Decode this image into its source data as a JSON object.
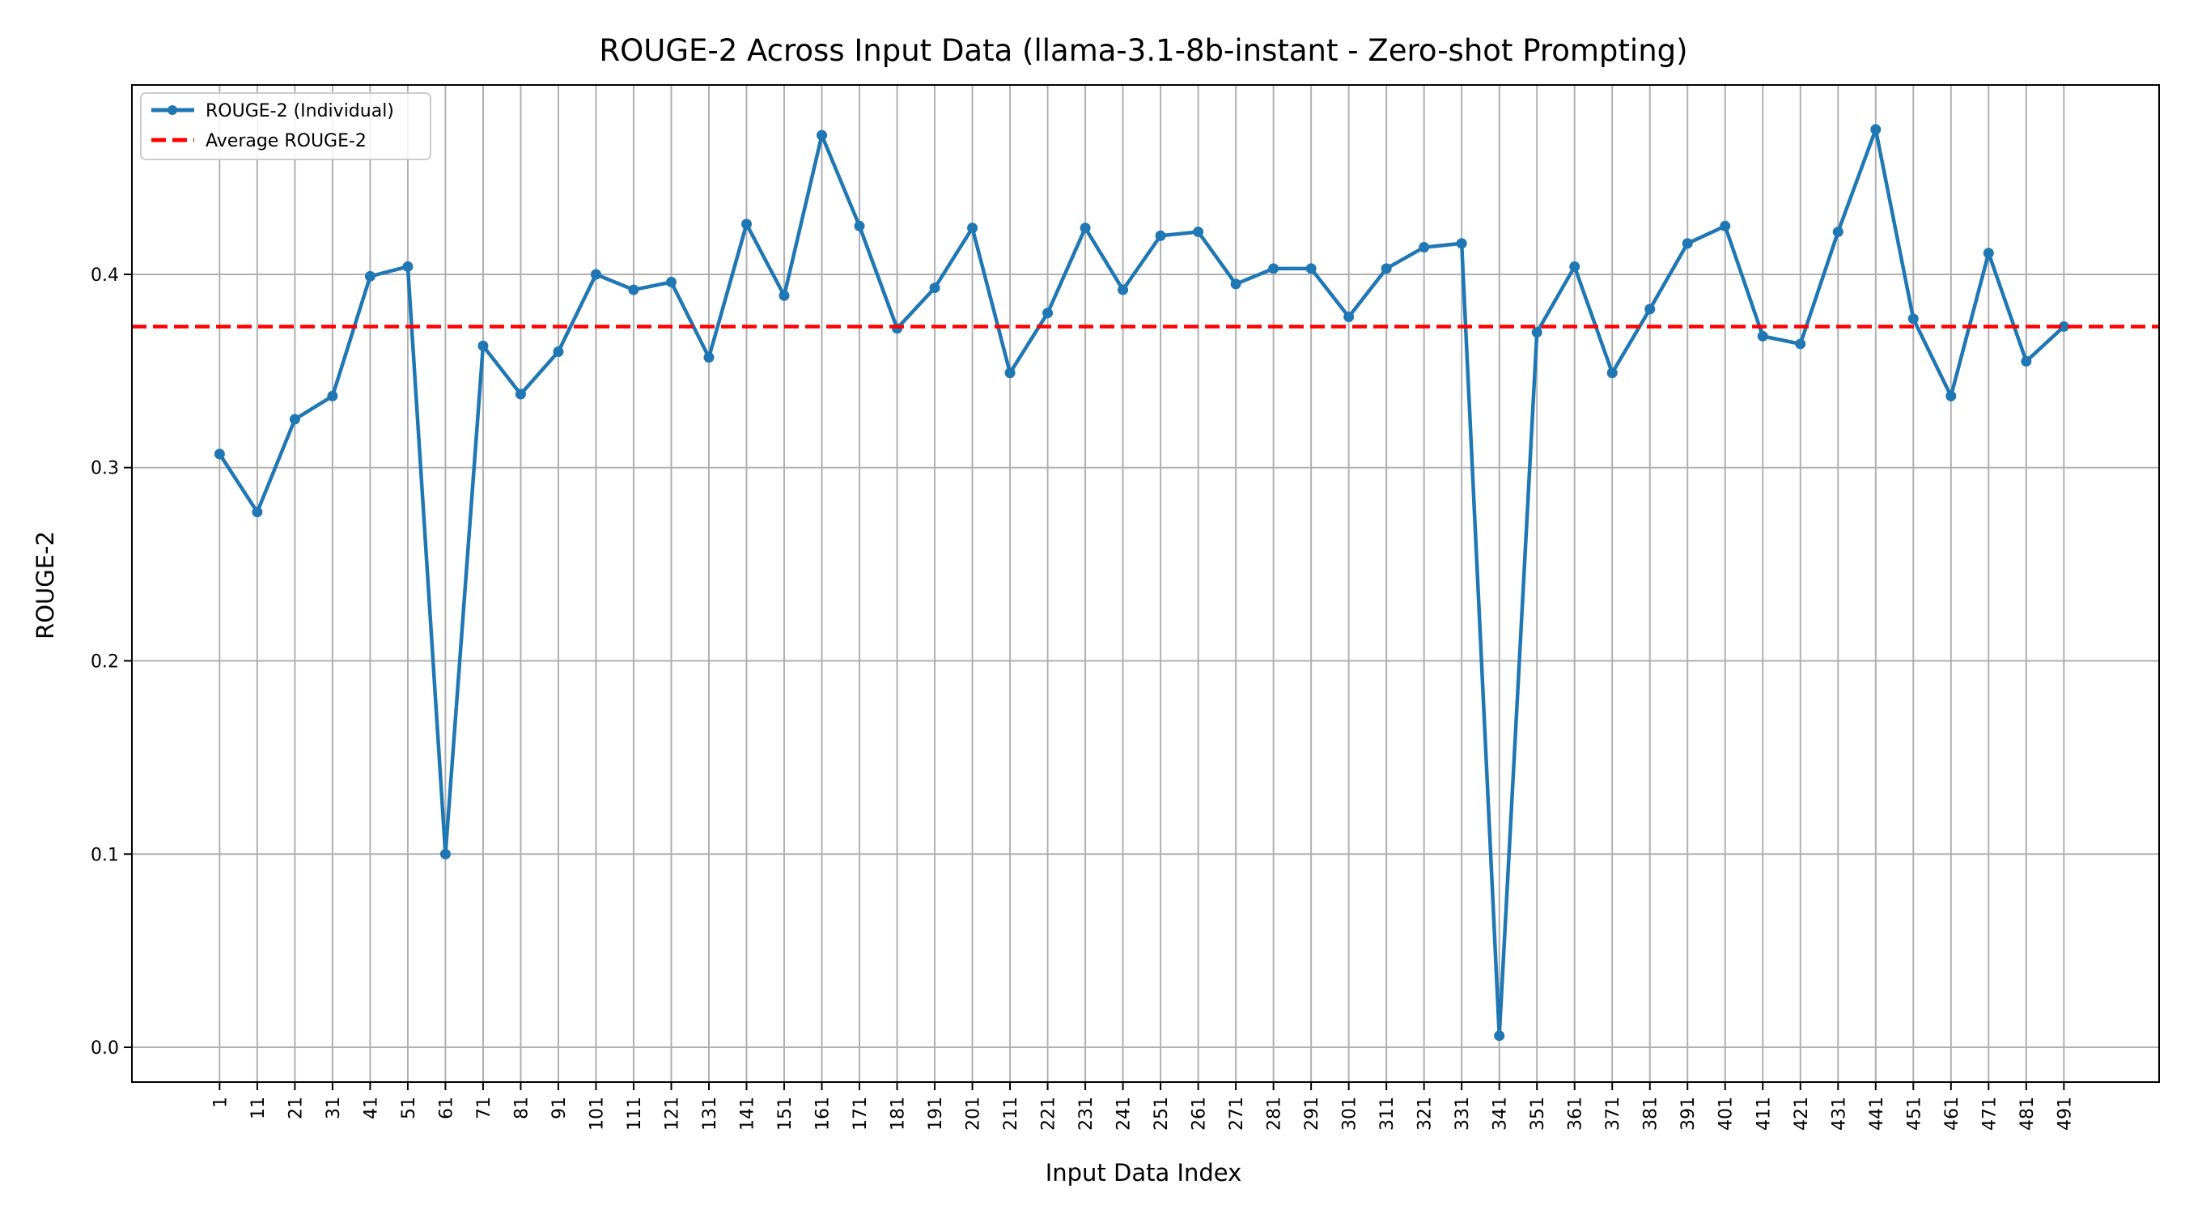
{
  "chart_data": {
    "type": "line",
    "title": "ROUGE-2 Across Input Data (llama-3.1-8b-instant - Zero-shot Prompting)",
    "xlabel": "Input Data Index",
    "ylabel": "ROUGE-2",
    "x": [
      1,
      11,
      21,
      31,
      41,
      51,
      61,
      71,
      81,
      91,
      101,
      111,
      121,
      131,
      141,
      151,
      161,
      171,
      181,
      191,
      201,
      211,
      221,
      231,
      241,
      251,
      261,
      271,
      281,
      291,
      301,
      311,
      321,
      331,
      341,
      351,
      361,
      371,
      381,
      391,
      401,
      411,
      421,
      431,
      441,
      451,
      461,
      471,
      481,
      491
    ],
    "x_tick_labels": [
      "1",
      "11",
      "21",
      "31",
      "41",
      "51",
      "61",
      "71",
      "81",
      "91",
      "101",
      "111",
      "121",
      "131",
      "141",
      "151",
      "161",
      "171",
      "181",
      "191",
      "201",
      "211",
      "221",
      "231",
      "241",
      "251",
      "261",
      "271",
      "281",
      "291",
      "301",
      "311",
      "321",
      "331",
      "341",
      "351",
      "361",
      "371",
      "381",
      "391",
      "401",
      "411",
      "421",
      "431",
      "441",
      "451",
      "461",
      "471",
      "481",
      "491"
    ],
    "xlim": [
      -22.3,
      516.3
    ],
    "ylim": [
      -0.018,
      0.498
    ],
    "y_ticks": [
      0.0,
      0.1,
      0.2,
      0.3,
      0.4
    ],
    "y_tick_labels": [
      "0.0",
      "0.1",
      "0.2",
      "0.3",
      "0.4"
    ],
    "grid": true,
    "legend_position": "top-left",
    "series": [
      {
        "name": "ROUGE-2 (Individual)",
        "color": "#1f77b4",
        "style": "solid",
        "marker": "circle",
        "values": [
          0.307,
          0.277,
          0.325,
          0.337,
          0.399,
          0.404,
          0.1,
          0.363,
          0.338,
          0.36,
          0.4,
          0.392,
          0.396,
          0.357,
          0.426,
          0.389,
          0.472,
          0.425,
          0.372,
          0.393,
          0.424,
          0.349,
          0.38,
          0.424,
          0.392,
          0.42,
          0.422,
          0.395,
          0.403,
          0.403,
          0.378,
          0.403,
          0.414,
          0.416,
          0.006,
          0.37,
          0.404,
          0.349,
          0.382,
          0.416,
          0.425,
          0.368,
          0.364,
          0.422,
          0.475,
          0.377,
          0.337,
          0.411,
          0.355,
          0.373
        ]
      }
    ],
    "reference_lines": [
      {
        "name": "Average ROUGE-2",
        "value": 0.373,
        "color": "#ff0000",
        "style": "dashed"
      }
    ]
  }
}
